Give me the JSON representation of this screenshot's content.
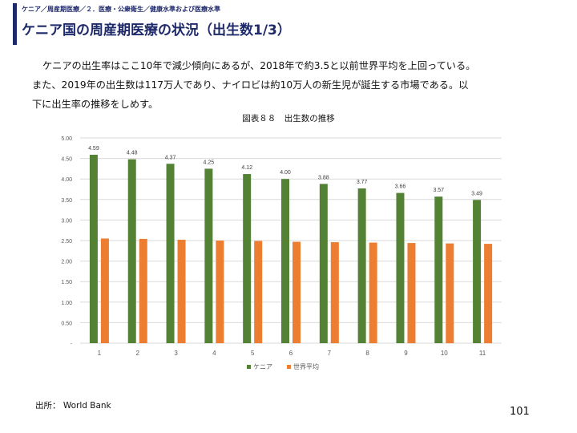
{
  "header": {
    "breadcrumb": "ケニア／周産期医療／２．医療・公衆衛生／健康水準および医療水準",
    "title": "ケニア国の周産期医療の状況（出生数1/3）"
  },
  "body": {
    "line1": "ケニアの出生率はここ10年で減少傾向にあるが、2018年で約3.5と以前世界平均を上回っている。",
    "line2": "また、2019年の出生数は117万人であり、ナイロビは約10万人の新生児が誕生する市場である。以",
    "line3": "下に出生率の推移をしめす。"
  },
  "figure_caption": "図表８８　出生数の推移",
  "chart_data": {
    "type": "bar",
    "categories": [
      "1",
      "2",
      "3",
      "4",
      "5",
      "6",
      "7",
      "8",
      "9",
      "10",
      "11"
    ],
    "series": [
      {
        "name": "ケニア",
        "color": "#548235",
        "values": [
          4.59,
          4.48,
          4.37,
          4.25,
          4.12,
          4.0,
          3.88,
          3.77,
          3.66,
          3.57,
          3.49
        ],
        "data_labels": [
          "4.59",
          "4.48",
          "4.37",
          "4.25",
          "4.12",
          "4.00",
          "3.88",
          "3.77",
          "3.66",
          "3.57",
          "3.49"
        ]
      },
      {
        "name": "世界平均",
        "color": "#ed7d31",
        "values": [
          2.55,
          2.54,
          2.52,
          2.5,
          2.49,
          2.47,
          2.46,
          2.45,
          2.44,
          2.43,
          2.42
        ]
      }
    ],
    "ylim": [
      0,
      5
    ],
    "y_ticks": [
      0,
      0.5,
      1,
      1.5,
      2,
      2.5,
      3,
      3.5,
      4,
      4.5,
      5
    ],
    "y_tick_labels": [
      "-",
      "0.50",
      "1.00",
      "1.50",
      "2.00",
      "2.50",
      "3.00",
      "3.50",
      "4.00",
      "4.50",
      "5.00"
    ],
    "grid": true,
    "legend_position": "bottom",
    "title": "",
    "xlabel": "",
    "ylabel": ""
  },
  "footer": {
    "source": "出所： World Bank",
    "page_number": "101"
  }
}
